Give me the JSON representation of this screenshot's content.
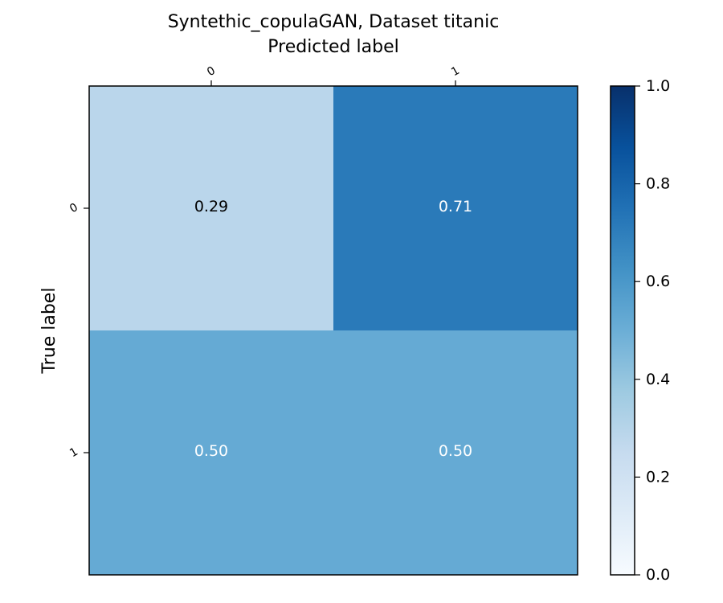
{
  "chart_data": {
    "type": "heatmap",
    "title": "Syntethic_copulaGAN, Dataset titanic",
    "xlabel": "Predicted label",
    "ylabel": "True label",
    "x_categories": [
      "0",
      "1"
    ],
    "y_categories": [
      "0",
      "1"
    ],
    "values": [
      [
        0.29,
        0.71
      ],
      [
        0.5,
        0.5
      ]
    ],
    "cell_labels": [
      [
        "0.29",
        "0.71"
      ],
      [
        "0.50",
        "0.50"
      ]
    ],
    "cell_colors": [
      [
        "#bad6eb",
        "#2a7ab9"
      ],
      [
        "#65aad4",
        "#65aad4"
      ]
    ],
    "cell_text_colors": [
      [
        "#000000",
        "#ffffff"
      ],
      [
        "#ffffff",
        "#ffffff"
      ]
    ],
    "colorbar": {
      "range": [
        0.0,
        1.0
      ],
      "ticks": [
        "0.0",
        "0.2",
        "0.4",
        "0.6",
        "0.8",
        "1.0"
      ],
      "colormap": "Blues",
      "stops": [
        "#f7fbff",
        "#deebf7",
        "#c6dbef",
        "#9ecae1",
        "#6baed6",
        "#4292c6",
        "#2171b5",
        "#08519c",
        "#08306b"
      ]
    }
  }
}
